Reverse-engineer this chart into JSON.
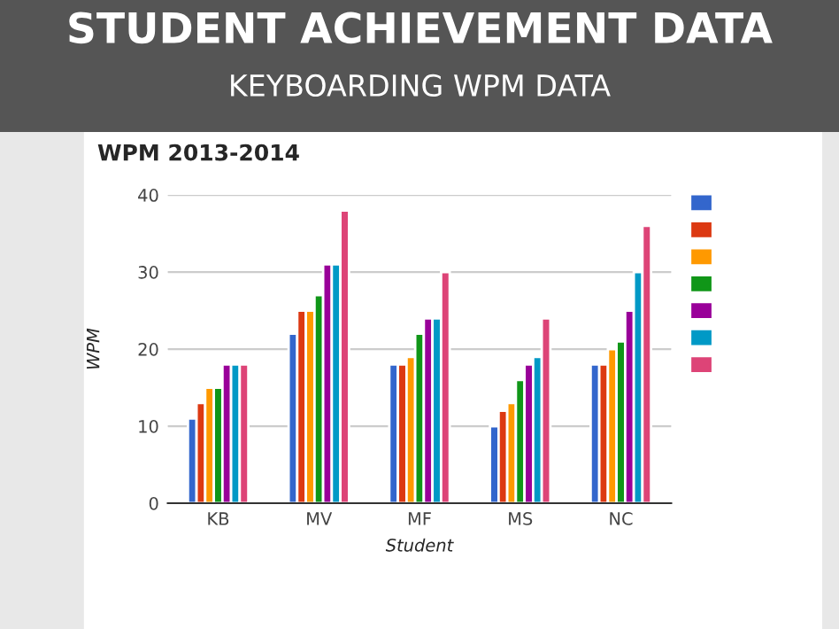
{
  "chart_data": {
    "type": "bar",
    "title": "WPM 2013-2014",
    "annotations": [
      "STUDENT ACHIEVEMENT DATA",
      "KEYBOARDING WPM DATA"
    ],
    "xlabel": "Student",
    "ylabel": "WPM",
    "categories": [
      "KB",
      "MV",
      "MF",
      "MS",
      "NC"
    ],
    "series": [
      {
        "color": "#3366cc",
        "values": [
          11,
          22,
          18,
          10,
          18
        ]
      },
      {
        "color": "#dc3912",
        "values": [
          13,
          25,
          18,
          12,
          18
        ]
      },
      {
        "color": "#ff9900",
        "values": [
          15,
          25,
          19,
          13,
          20
        ]
      },
      {
        "color": "#109618",
        "values": [
          15,
          27,
          22,
          16,
          21
        ]
      },
      {
        "color": "#990099",
        "values": [
          18,
          31,
          24,
          18,
          25
        ]
      },
      {
        "color": "#0099c6",
        "values": [
          18,
          31,
          24,
          19,
          30
        ]
      },
      {
        "color": "#dd4477",
        "values": [
          18,
          38,
          30,
          24,
          36
        ]
      }
    ],
    "ylim": [
      0,
      40
    ],
    "yticks": [
      0,
      10,
      20,
      30,
      40
    ],
    "grid": "y"
  }
}
